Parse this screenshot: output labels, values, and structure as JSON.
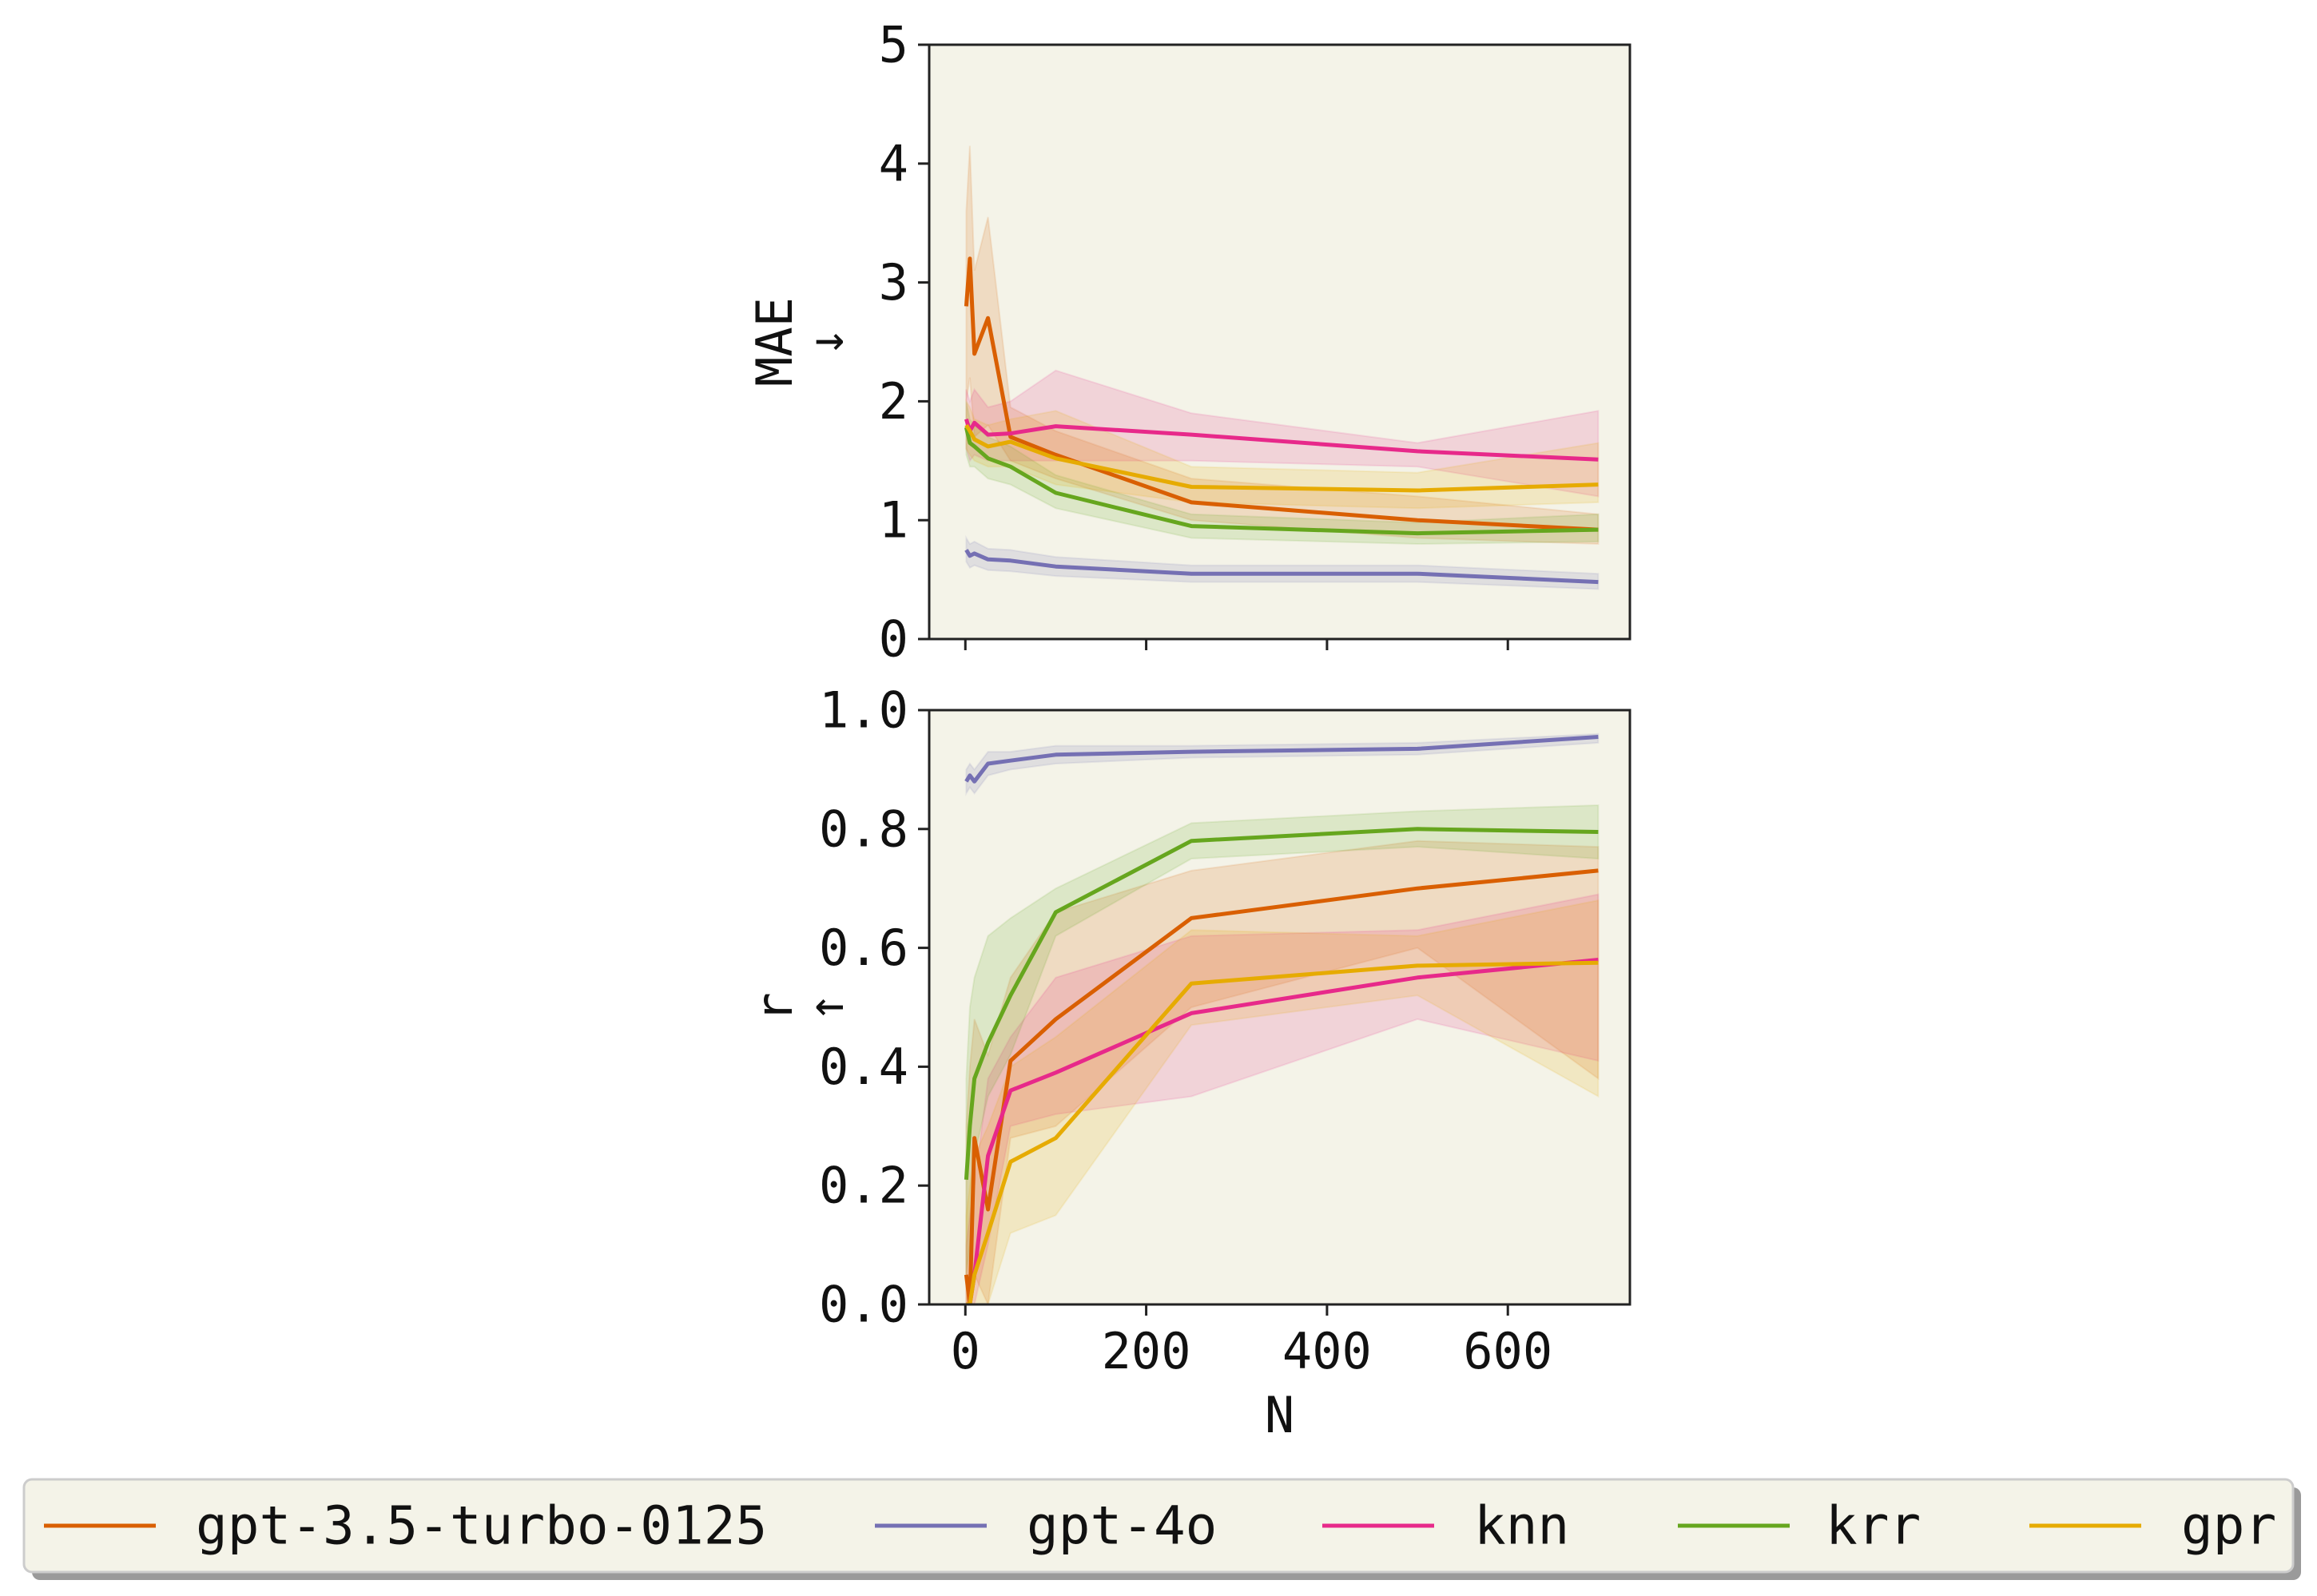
{
  "colors": {
    "plot_background": "#f4f3e8",
    "legend_background": "#f4f3e8",
    "axis": "#222222"
  },
  "legend": {
    "placement": "bottom",
    "entries": [
      {
        "label": "gpt-3.5-turbo-0125",
        "color": "#d95f02"
      },
      {
        "label": "gpt-4o",
        "color": "#7570b3"
      },
      {
        "label": "knn",
        "color": "#e7298a"
      },
      {
        "label": "krr",
        "color": "#66a61e"
      },
      {
        "label": "gpr",
        "color": "#e6ab02"
      }
    ]
  },
  "chart_data": [
    {
      "type": "line",
      "title": "",
      "ylabel": "MAE",
      "ylabel_arrow": "↓",
      "xlabel": "",
      "xlim": [
        -40,
        735
      ],
      "ylim": [
        0,
        5
      ],
      "xticks": [
        0,
        200,
        400,
        600
      ],
      "xtick_labels_shown": false,
      "yticks": [
        0,
        1,
        2,
        3,
        4,
        5
      ],
      "ytick_labels": [
        "0",
        "1",
        "2",
        "3",
        "4",
        "5"
      ],
      "grid": false,
      "series": [
        {
          "name": "gpt-3.5-turbo-0125",
          "color": "#d95f02",
          "x": [
            1,
            5,
            10,
            25,
            50,
            100,
            250,
            500,
            700
          ],
          "y": [
            2.8,
            3.2,
            2.4,
            2.7,
            1.7,
            1.55,
            1.15,
            1.0,
            0.92
          ],
          "lower": [
            2.0,
            2.2,
            1.7,
            1.8,
            1.5,
            1.35,
            1.0,
            0.85,
            0.8
          ],
          "upper": [
            3.6,
            4.15,
            3.1,
            3.55,
            1.95,
            1.75,
            1.35,
            1.2,
            1.05
          ]
        },
        {
          "name": "gpt-4o",
          "color": "#7570b3",
          "x": [
            1,
            5,
            10,
            25,
            50,
            100,
            250,
            500,
            700
          ],
          "y": [
            0.75,
            0.7,
            0.72,
            0.67,
            0.66,
            0.61,
            0.55,
            0.55,
            0.48
          ],
          "lower": [
            0.65,
            0.6,
            0.62,
            0.58,
            0.57,
            0.53,
            0.48,
            0.48,
            0.42
          ],
          "upper": [
            0.85,
            0.8,
            0.82,
            0.76,
            0.75,
            0.69,
            0.62,
            0.62,
            0.55
          ]
        },
        {
          "name": "knn",
          "color": "#e7298a",
          "x": [
            1,
            5,
            10,
            25,
            50,
            100,
            250,
            500,
            700
          ],
          "y": [
            1.85,
            1.75,
            1.82,
            1.72,
            1.73,
            1.79,
            1.72,
            1.58,
            1.51
          ],
          "lower": [
            1.6,
            1.5,
            1.55,
            1.5,
            1.5,
            1.5,
            1.5,
            1.45,
            1.2
          ],
          "upper": [
            2.1,
            2.0,
            2.1,
            1.95,
            2.0,
            2.26,
            1.9,
            1.65,
            1.92
          ]
        },
        {
          "name": "krr",
          "color": "#66a61e",
          "x": [
            1,
            5,
            10,
            25,
            50,
            100,
            250,
            500,
            700
          ],
          "y": [
            1.78,
            1.65,
            1.62,
            1.52,
            1.45,
            1.23,
            0.95,
            0.89,
            0.92
          ],
          "lower": [
            1.55,
            1.45,
            1.45,
            1.35,
            1.3,
            1.1,
            0.85,
            0.8,
            0.82
          ],
          "upper": [
            2.0,
            1.85,
            1.8,
            1.7,
            1.62,
            1.38,
            1.05,
            0.98,
            1.05
          ]
        },
        {
          "name": "gpr",
          "color": "#e6ab02",
          "x": [
            1,
            5,
            10,
            25,
            50,
            100,
            250,
            500,
            700
          ],
          "y": [
            1.8,
            1.75,
            1.68,
            1.62,
            1.66,
            1.52,
            1.28,
            1.25,
            1.3
          ],
          "lower": [
            1.6,
            1.55,
            1.5,
            1.45,
            1.45,
            1.3,
            1.15,
            1.1,
            1.15
          ],
          "upper": [
            2.0,
            1.95,
            1.85,
            1.8,
            1.85,
            1.92,
            1.45,
            1.4,
            1.65
          ]
        }
      ]
    },
    {
      "type": "line",
      "title": "",
      "ylabel": "r",
      "ylabel_arrow": "↑",
      "xlabel": "N",
      "xlim": [
        -40,
        735
      ],
      "ylim": [
        0,
        1
      ],
      "xticks": [
        0,
        200,
        400,
        600
      ],
      "xtick_labels": [
        "0",
        "200",
        "400",
        "600"
      ],
      "yticks": [
        0,
        0.2,
        0.4,
        0.6,
        0.8,
        1.0
      ],
      "ytick_labels": [
        "0.0",
        "0.2",
        "0.4",
        "0.6",
        "0.8",
        "1.0"
      ],
      "grid": false,
      "series": [
        {
          "name": "gpt-3.5-turbo-0125",
          "color": "#d95f02",
          "x": [
            1,
            5,
            10,
            25,
            50,
            100,
            250,
            500,
            700
          ],
          "y": [
            0.05,
            0.0,
            0.28,
            0.16,
            0.41,
            0.48,
            0.65,
            0.7,
            0.73
          ],
          "lower": [
            0.0,
            0.0,
            0.05,
            0.0,
            0.28,
            0.3,
            0.5,
            0.6,
            0.38
          ],
          "upper": [
            0.3,
            0.4,
            0.48,
            0.42,
            0.55,
            0.66,
            0.73,
            0.78,
            0.77
          ]
        },
        {
          "name": "gpt-4o",
          "color": "#7570b3",
          "x": [
            1,
            5,
            10,
            25,
            50,
            100,
            250,
            500,
            700
          ],
          "y": [
            0.88,
            0.89,
            0.88,
            0.91,
            0.915,
            0.925,
            0.93,
            0.935,
            0.955
          ],
          "lower": [
            0.86,
            0.87,
            0.86,
            0.89,
            0.9,
            0.91,
            0.92,
            0.925,
            0.945
          ],
          "upper": [
            0.9,
            0.91,
            0.9,
            0.93,
            0.93,
            0.94,
            0.94,
            0.945,
            0.96
          ]
        },
        {
          "name": "knn",
          "color": "#e7298a",
          "x": [
            1,
            5,
            10,
            25,
            50,
            100,
            250,
            500,
            700
          ],
          "y": [
            0.0,
            0.0,
            0.05,
            0.25,
            0.36,
            0.39,
            0.49,
            0.55,
            0.58
          ],
          "lower": [
            0.0,
            0.0,
            0.0,
            0.1,
            0.3,
            0.32,
            0.35,
            0.48,
            0.41
          ],
          "upper": [
            0.1,
            0.15,
            0.2,
            0.38,
            0.45,
            0.55,
            0.62,
            0.63,
            0.69
          ]
        },
        {
          "name": "krr",
          "color": "#66a61e",
          "x": [
            1,
            5,
            10,
            25,
            50,
            100,
            250,
            500,
            700
          ],
          "y": [
            0.21,
            0.3,
            0.38,
            0.44,
            0.52,
            0.66,
            0.78,
            0.8,
            0.795
          ],
          "lower": [
            0.05,
            0.1,
            0.25,
            0.35,
            0.42,
            0.62,
            0.75,
            0.77,
            0.75
          ],
          "upper": [
            0.38,
            0.5,
            0.55,
            0.62,
            0.65,
            0.7,
            0.81,
            0.83,
            0.84
          ]
        },
        {
          "name": "gpr",
          "color": "#e6ab02",
          "x": [
            1,
            5,
            10,
            25,
            50,
            100,
            250,
            500,
            700
          ],
          "y": [
            0.0,
            0.0,
            0.05,
            0.12,
            0.24,
            0.28,
            0.54,
            0.57,
            0.575
          ],
          "lower": [
            0.0,
            0.0,
            0.0,
            0.0,
            0.12,
            0.15,
            0.47,
            0.52,
            0.35
          ],
          "upper": [
            0.15,
            0.2,
            0.25,
            0.3,
            0.4,
            0.45,
            0.63,
            0.62,
            0.68
          ]
        }
      ]
    }
  ]
}
